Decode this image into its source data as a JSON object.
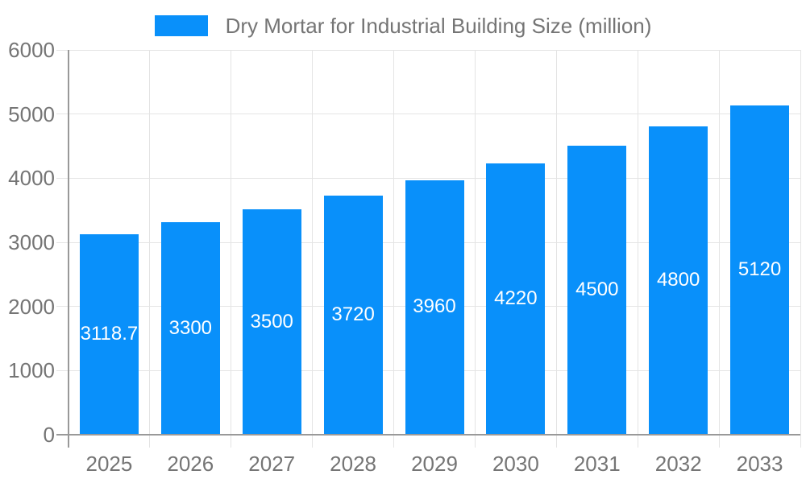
{
  "legend": {
    "label": "Dry Mortar for Industrial Building Size (million)"
  },
  "colors": {
    "bar": "#0990fa",
    "axis": "#999999",
    "gridline": "#e4e4e4",
    "tick_text": "#757575",
    "value_text": "#ffffff",
    "background": "#ffffff"
  },
  "chart_data": {
    "type": "bar",
    "title": "Dry Mortar for Industrial Building Size (million)",
    "categories": [
      "2025",
      "2026",
      "2027",
      "2028",
      "2029",
      "2030",
      "2031",
      "2032",
      "2033"
    ],
    "values": [
      3118.7,
      3300,
      3500,
      3720,
      3960,
      4220,
      4500,
      4800,
      5120
    ],
    "value_labels": [
      "3118.7",
      "3300",
      "3500",
      "3720",
      "3960",
      "4220",
      "4500",
      "4800",
      "5120"
    ],
    "xlabel": "",
    "ylabel": "",
    "ylim": [
      0,
      6000
    ],
    "ytick_step": 1000,
    "yticks": [
      0,
      1000,
      2000,
      3000,
      4000,
      5000,
      6000
    ],
    "grid": true,
    "legend_position": "top",
    "value_label_position": "inside-center"
  }
}
